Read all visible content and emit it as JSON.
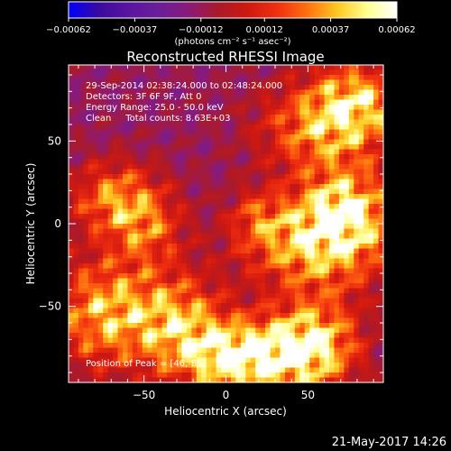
{
  "chart_data": {
    "type": "heatmap",
    "title": "Reconstructed RHESSI Image",
    "xlabel": "Heliocentric X (arcsec)",
    "ylabel": "Heliocentric Y (arcsec)",
    "xlim": [
      -96,
      96
    ],
    "ylim": [
      -96,
      96
    ],
    "x_ticks": [
      -50,
      0,
      50
    ],
    "y_ticks": [
      50,
      0,
      -50
    ],
    "x_tick_labels": [
      "−50",
      "0",
      "50"
    ],
    "y_tick_labels": [
      "50",
      "0",
      "−50"
    ],
    "colorbar": {
      "range": [
        -0.00062,
        0.00062
      ],
      "tick_values": [
        -0.00062,
        -0.00037,
        -0.00012,
        0.00012,
        0.00037,
        0.00062
      ],
      "tick_labels": [
        "−0.00062",
        "−0.00037",
        "−0.00012",
        "0.00012",
        "0.00037",
        "0.00062"
      ],
      "units_label": "(photons cm⁻² s⁻¹ asec⁻²)",
      "colors": [
        "#0000ff",
        "#3a0aa0",
        "#5a14a0",
        "#6a1e9a",
        "#8a1a7a",
        "#aa1a2a",
        "#d01810",
        "#f03010",
        "#ff7010",
        "#ffc820",
        "#ffff90",
        "#ffffff"
      ]
    },
    "info_lines": [
      "29-Sep-2014 02:38:24.000 to 02:48:24.000",
      "Detectors: 3F 6F 9F, Att 0",
      "Energy Range: 25.0 - 50.0 keV",
      "Clean     Total counts: 8.63E+03"
    ],
    "peak_label": "Position of Peak = [46,-85]",
    "peak_position": [
      46,
      -85
    ],
    "grid": false,
    "image_background_color": "#6a1e9a"
  },
  "footer": {
    "timestamp": "21-May-2017 14:26"
  }
}
